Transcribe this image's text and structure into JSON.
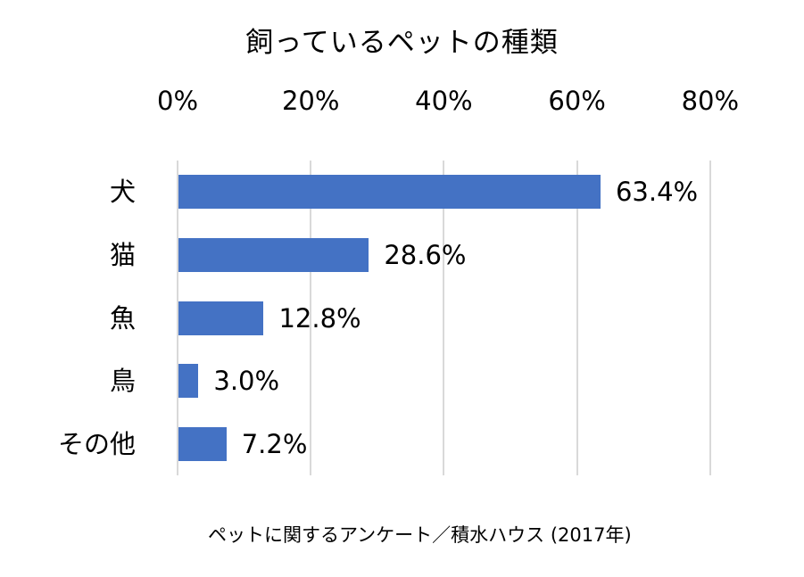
{
  "chart_data": {
    "type": "bar",
    "orientation": "horizontal",
    "title": "飼っているペットの種類",
    "categories": [
      "犬",
      "猫",
      "魚",
      "鳥",
      "その他"
    ],
    "values": [
      63.4,
      28.6,
      12.8,
      3.0,
      7.2
    ],
    "value_labels": [
      "63.4%",
      "28.6%",
      "12.8%",
      "3.0%",
      "7.2%"
    ],
    "x_ticks": [
      "0%",
      "20%",
      "40%",
      "60%",
      "80%"
    ],
    "x_tick_values": [
      0,
      20,
      40,
      60,
      80
    ],
    "xlim": [
      0,
      80
    ],
    "grid": "vertical-gridlines",
    "legend": "none",
    "source": "ペットに関するアンケート／積水ハウス (2017年)",
    "bar_color": "#4472C4",
    "gridline_color": "#D9D9D9",
    "text_color": "#000000",
    "background_color": "#FFFFFF"
  }
}
